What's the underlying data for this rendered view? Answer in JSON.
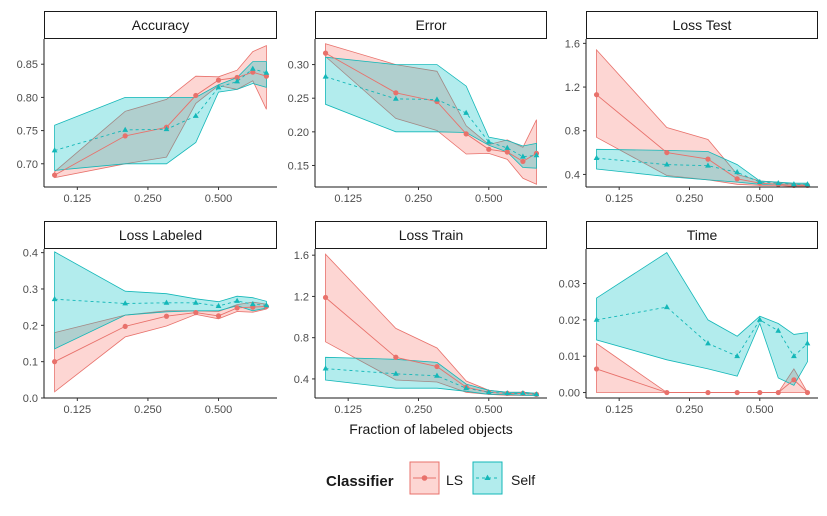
{
  "xlabel": "Fraction of labeled objects",
  "legend": {
    "title": "Classifier",
    "items": [
      {
        "name": "LS",
        "color": "#e8716b",
        "marker": "circle",
        "dash": "solid"
      },
      {
        "name": "Self",
        "color": "#13b7b8",
        "marker": "triangle",
        "dash": "dashed"
      }
    ]
  },
  "x_scale": "log2",
  "x_ticks": [
    0.125,
    0.25,
    0.5
  ],
  "x_tick_labels": [
    "0.125",
    "0.250",
    "0.500"
  ],
  "chart_data": [
    {
      "type": "line",
      "title": "Accuracy",
      "xlabel": "",
      "ylim": [
        0.665,
        0.888
      ],
      "yticks": [
        0.7,
        0.75,
        0.8,
        0.85
      ],
      "ytick_labels": [
        "0.70",
        "0.75",
        "0.80",
        "0.85"
      ],
      "x": [
        0.1,
        0.2,
        0.3,
        0.4,
        0.5,
        0.6,
        0.7,
        0.8
      ],
      "series": [
        {
          "name": "LS",
          "values": [
            0.683,
            0.742,
            0.755,
            0.803,
            0.826,
            0.83,
            0.838,
            0.832
          ],
          "lower": [
            0.679,
            0.7,
            0.71,
            0.791,
            0.818,
            0.812,
            0.825,
            0.782
          ],
          "upper": [
            0.688,
            0.779,
            0.797,
            0.832,
            0.831,
            0.841,
            0.869,
            0.878
          ]
        },
        {
          "name": "Self",
          "values": [
            0.72,
            0.751,
            0.752,
            0.772,
            0.815,
            0.824,
            0.843,
            0.837
          ],
          "lower": [
            0.69,
            0.7,
            0.7,
            0.732,
            0.808,
            0.812,
            0.821,
            0.815
          ],
          "upper": [
            0.758,
            0.8,
            0.8,
            0.8,
            0.819,
            0.83,
            0.854,
            0.854
          ]
        }
      ]
    },
    {
      "type": "line",
      "title": "Error",
      "xlabel": "",
      "ylim": [
        0.118,
        0.338
      ],
      "yticks": [
        0.15,
        0.2,
        0.25,
        0.3
      ],
      "ytick_labels": [
        "0.15",
        "0.20",
        "0.25",
        "0.30"
      ],
      "x": [
        0.1,
        0.2,
        0.3,
        0.4,
        0.5,
        0.6,
        0.7,
        0.8
      ],
      "series": [
        {
          "name": "LS",
          "values": [
            0.317,
            0.258,
            0.245,
            0.197,
            0.174,
            0.17,
            0.156,
            0.168
          ],
          "lower": [
            0.312,
            0.22,
            0.202,
            0.167,
            0.168,
            0.159,
            0.131,
            0.122
          ],
          "upper": [
            0.331,
            0.3,
            0.29,
            0.209,
            0.181,
            0.188,
            0.177,
            0.218
          ]
        },
        {
          "name": "Self",
          "values": [
            0.282,
            0.249,
            0.248,
            0.228,
            0.185,
            0.176,
            0.163,
            0.165
          ],
          "lower": [
            0.241,
            0.2,
            0.2,
            0.199,
            0.18,
            0.17,
            0.147,
            0.146
          ],
          "upper": [
            0.311,
            0.3,
            0.3,
            0.268,
            0.192,
            0.187,
            0.179,
            0.183
          ]
        }
      ]
    },
    {
      "type": "line",
      "title": "Loss Test",
      "xlabel": "",
      "ylim": [
        0.285,
        1.64
      ],
      "yticks": [
        0.4,
        0.8,
        1.2,
        1.6
      ],
      "ytick_labels": [
        "0.4",
        "0.8",
        "1.2",
        "1.6"
      ],
      "x": [
        0.1,
        0.2,
        0.3,
        0.4,
        0.5,
        0.6,
        0.7,
        0.8
      ],
      "series": [
        {
          "name": "LS",
          "values": [
            1.13,
            0.6,
            0.54,
            0.36,
            0.32,
            0.31,
            0.3,
            0.3
          ],
          "lower": [
            0.74,
            0.39,
            0.35,
            0.31,
            0.3,
            0.3,
            0.29,
            0.29
          ],
          "upper": [
            1.54,
            0.83,
            0.72,
            0.4,
            0.34,
            0.33,
            0.31,
            0.31
          ]
        },
        {
          "name": "Self",
          "values": [
            0.55,
            0.49,
            0.48,
            0.42,
            0.33,
            0.32,
            0.31,
            0.31
          ],
          "lower": [
            0.45,
            0.38,
            0.35,
            0.33,
            0.31,
            0.31,
            0.3,
            0.3
          ],
          "upper": [
            0.63,
            0.62,
            0.61,
            0.49,
            0.34,
            0.33,
            0.32,
            0.32
          ]
        }
      ]
    },
    {
      "type": "line",
      "title": "Loss Labeled",
      "xlabel": "",
      "ylim": [
        0.0,
        0.41
      ],
      "yticks": [
        0.0,
        0.1,
        0.2,
        0.3,
        0.4
      ],
      "ytick_labels": [
        "0.0",
        "0.1",
        "0.2",
        "0.3",
        "0.4"
      ],
      "x": [
        0.1,
        0.2,
        0.3,
        0.4,
        0.5,
        0.6,
        0.7,
        0.8
      ],
      "series": [
        {
          "name": "LS",
          "values": [
            0.1,
            0.197,
            0.225,
            0.235,
            0.226,
            0.248,
            0.25,
            0.252
          ],
          "lower": [
            0.017,
            0.168,
            0.198,
            0.23,
            0.218,
            0.238,
            0.236,
            0.245
          ],
          "upper": [
            0.18,
            0.228,
            0.24,
            0.24,
            0.238,
            0.257,
            0.264,
            0.258
          ]
        },
        {
          "name": "Self",
          "values": [
            0.272,
            0.26,
            0.262,
            0.262,
            0.253,
            0.267,
            0.258,
            0.255
          ],
          "lower": [
            0.135,
            0.228,
            0.237,
            0.24,
            0.24,
            0.254,
            0.24,
            0.247
          ],
          "upper": [
            0.402,
            0.294,
            0.287,
            0.273,
            0.265,
            0.28,
            0.276,
            0.266
          ]
        }
      ]
    },
    {
      "type": "line",
      "title": "Loss Train",
      "xlabel": "Fraction of labeled objects",
      "ylim": [
        0.215,
        1.66
      ],
      "yticks": [
        0.4,
        0.8,
        1.2,
        1.6
      ],
      "ytick_labels": [
        "0.4",
        "0.8",
        "1.2",
        "1.6"
      ],
      "x": [
        0.1,
        0.2,
        0.3,
        0.4,
        0.5,
        0.6,
        0.7,
        0.8
      ],
      "series": [
        {
          "name": "LS",
          "values": [
            1.19,
            0.61,
            0.52,
            0.32,
            0.27,
            0.26,
            0.26,
            0.25
          ],
          "lower": [
            0.76,
            0.39,
            0.37,
            0.27,
            0.25,
            0.24,
            0.24,
            0.24
          ],
          "upper": [
            1.61,
            0.89,
            0.7,
            0.38,
            0.29,
            0.27,
            0.27,
            0.26
          ]
        },
        {
          "name": "Self",
          "values": [
            0.5,
            0.45,
            0.43,
            0.31,
            0.27,
            0.26,
            0.26,
            0.25
          ],
          "lower": [
            0.39,
            0.31,
            0.31,
            0.28,
            0.25,
            0.25,
            0.24,
            0.24
          ],
          "upper": [
            0.61,
            0.59,
            0.56,
            0.35,
            0.29,
            0.27,
            0.27,
            0.26
          ]
        }
      ]
    },
    {
      "type": "line",
      "title": "Time",
      "xlabel": "",
      "ylim": [
        -0.0015,
        0.0395
      ],
      "yticks": [
        0.0,
        0.01,
        0.02,
        0.03
      ],
      "ytick_labels": [
        "0.00",
        "0.01",
        "0.02",
        "0.03"
      ],
      "x": [
        0.1,
        0.2,
        0.3,
        0.4,
        0.5,
        0.6,
        0.7,
        0.8
      ],
      "series": [
        {
          "name": "LS",
          "values": [
            0.0065,
            0.0,
            0.0,
            0.0,
            0.0,
            0.0,
            0.0035,
            0.0
          ],
          "lower": [
            0.0,
            0.0,
            0.0,
            0.0,
            0.0,
            0.0,
            0.0,
            0.0
          ],
          "upper": [
            0.0135,
            0.0,
            0.0,
            0.0,
            0.0,
            0.0,
            0.0065,
            0.0
          ]
        },
        {
          "name": "Self",
          "values": [
            0.02,
            0.0235,
            0.0135,
            0.01,
            0.02,
            0.017,
            0.01,
            0.0135
          ],
          "lower": [
            0.0145,
            0.009,
            0.0065,
            0.0045,
            0.019,
            0.004,
            0.002,
            0.0085
          ],
          "upper": [
            0.026,
            0.0385,
            0.02,
            0.0155,
            0.021,
            0.019,
            0.016,
            0.0165
          ]
        }
      ]
    }
  ]
}
